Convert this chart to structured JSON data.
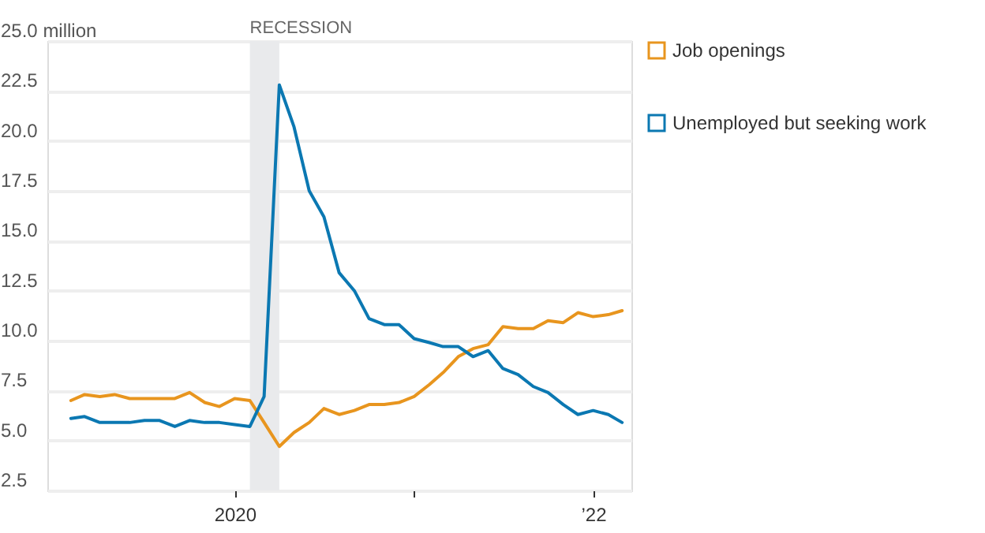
{
  "chart_data": {
    "type": "line",
    "x": [
      "2019-02",
      "2019-03",
      "2019-04",
      "2019-05",
      "2019-06",
      "2019-07",
      "2019-08",
      "2019-09",
      "2019-10",
      "2019-11",
      "2019-12",
      "2020-01",
      "2020-02",
      "2020-03",
      "2020-04",
      "2020-05",
      "2020-06",
      "2020-07",
      "2020-08",
      "2020-09",
      "2020-10",
      "2020-11",
      "2020-12",
      "2021-01",
      "2021-02",
      "2021-03",
      "2021-04",
      "2021-05",
      "2021-06",
      "2021-07",
      "2021-08",
      "2021-09",
      "2021-10",
      "2021-11",
      "2021-12",
      "2022-01",
      "2022-02",
      "2022-03"
    ],
    "series": [
      {
        "name": "Job openings",
        "color": "#e8951e",
        "values": [
          7.0,
          7.3,
          7.2,
          7.3,
          7.1,
          7.1,
          7.1,
          7.1,
          7.4,
          6.9,
          6.7,
          7.1,
          7.0,
          5.9,
          4.7,
          5.4,
          5.9,
          6.6,
          6.3,
          6.5,
          6.8,
          6.8,
          6.9,
          7.2,
          7.8,
          8.4,
          9.2,
          9.6,
          9.8,
          10.7,
          10.6,
          10.6,
          11.0,
          10.9,
          11.4,
          11.2,
          11.3,
          11.5
        ]
      },
      {
        "name": "Unemployed but seeking work",
        "color": "#0b78b2",
        "values": [
          6.1,
          6.2,
          5.9,
          5.9,
          5.9,
          6.0,
          6.0,
          5.7,
          6.0,
          5.9,
          5.9,
          5.8,
          5.7,
          7.2,
          22.8,
          20.7,
          17.5,
          16.2,
          13.4,
          12.5,
          11.1,
          10.8,
          10.8,
          10.1,
          9.9,
          9.7,
          9.7,
          9.2,
          9.5,
          8.6,
          8.3,
          7.7,
          7.4,
          6.8,
          6.3,
          6.5,
          6.3,
          5.9
        ]
      }
    ],
    "xlim": [
      "2018-12-15",
      "2022-03-20"
    ],
    "xticks": [
      {
        "value": "2020-01-01",
        "label": "2020"
      },
      {
        "value": "2021-01-01",
        "label": null
      },
      {
        "value": "2022-01-01",
        "label": "’22"
      }
    ],
    "ylim": [
      2.5,
      25.0
    ],
    "yticks": [
      {
        "value": 2.5,
        "label": "2.5"
      },
      {
        "value": 5,
        "label": "5.0"
      },
      {
        "value": 7.5,
        "label": "7.5"
      },
      {
        "value": 10,
        "label": "10.0"
      },
      {
        "value": 12.5,
        "label": "12.5"
      },
      {
        "value": 15,
        "label": "15.0"
      },
      {
        "value": 17.5,
        "label": "17.5"
      },
      {
        "value": 20,
        "label": "20.0"
      },
      {
        "value": 22.5,
        "label": "22.5"
      },
      {
        "value": 25,
        "label": "25.0 million"
      }
    ],
    "bands": [
      {
        "axis": "x",
        "from": "2020-02",
        "to": "2020-04",
        "label": "RECESSION",
        "color": "#e9eaec"
      }
    ],
    "grid": "y",
    "legend": "right",
    "line_style": "solid",
    "marker": "none"
  }
}
